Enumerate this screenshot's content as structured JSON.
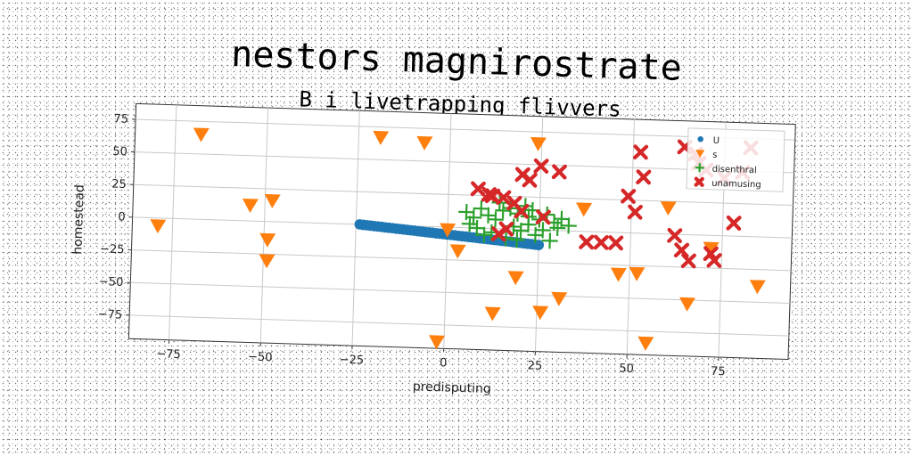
{
  "chart_data": {
    "type": "scatter",
    "title": "nestors magnirostrate",
    "subtitle": "B i livetrapping flivvers",
    "xlabel": "predisputing",
    "ylabel": "homestead",
    "xlim": [
      -86,
      94
    ],
    "ylim": [
      -93,
      87
    ],
    "xticks": [
      -75,
      -50,
      -25,
      0,
      25,
      50,
      75
    ],
    "yticks": [
      75,
      50,
      25,
      0,
      -25,
      -50,
      -75
    ],
    "grid": true,
    "legend_position": "top-right",
    "series": [
      {
        "name": "U",
        "marker": "circle",
        "color": "#1f77b4",
        "points": [
          [
            -24,
            0
          ],
          [
            -23,
            -0.3
          ],
          [
            -22,
            -0.5
          ],
          [
            -21,
            -0.7
          ],
          [
            -20,
            -1
          ],
          [
            -19,
            -1.2
          ],
          [
            -18,
            -1.4
          ],
          [
            -17,
            -1.7
          ],
          [
            -16,
            -1.9
          ],
          [
            -15,
            -2.1
          ],
          [
            -14,
            -2.4
          ],
          [
            -13,
            -2.6
          ],
          [
            -12,
            -2.8
          ],
          [
            -11,
            -3.1
          ],
          [
            -10,
            -3.3
          ],
          [
            -9,
            -3.5
          ],
          [
            -8,
            -3.8
          ],
          [
            -7,
            -4
          ],
          [
            -6,
            -4.3
          ],
          [
            -5,
            -4.5
          ],
          [
            -4,
            -4.7
          ],
          [
            -3,
            -5
          ],
          [
            -2,
            -5.2
          ],
          [
            -1,
            -5.4
          ],
          [
            0,
            -5.7
          ],
          [
            1,
            -5.9
          ],
          [
            2,
            -6.1
          ],
          [
            3,
            -6.4
          ],
          [
            4,
            -6.6
          ],
          [
            5,
            -6.8
          ],
          [
            6,
            -7.1
          ],
          [
            7,
            -7.3
          ],
          [
            8,
            -7.5
          ],
          [
            9,
            -7.8
          ],
          [
            10,
            -8
          ],
          [
            11,
            -8.2
          ],
          [
            12,
            -8.5
          ],
          [
            13,
            -8.7
          ],
          [
            14,
            -8.9
          ],
          [
            15,
            -9.2
          ],
          [
            16,
            -9.4
          ],
          [
            17,
            -9.6
          ],
          [
            18,
            -9.9
          ],
          [
            19,
            -10.1
          ],
          [
            20,
            -10.3
          ],
          [
            21,
            -10.6
          ],
          [
            22,
            -10.8
          ],
          [
            23,
            -11
          ],
          [
            24,
            -11.3
          ],
          [
            25,
            -11.5
          ]
        ]
      },
      {
        "name": "s",
        "marker": "triangle-down",
        "color": "#ff7f0e",
        "points": [
          [
            -68,
            65
          ],
          [
            -19,
            67
          ],
          [
            -7,
            64
          ],
          [
            24,
            66
          ],
          [
            -79,
            -6
          ],
          [
            -54,
            12
          ],
          [
            -48,
            16
          ],
          [
            -49,
            -14
          ],
          [
            -49,
            -30
          ],
          [
            0,
            -2
          ],
          [
            3,
            -18
          ],
          [
            19,
            -37
          ],
          [
            26,
            -63
          ],
          [
            31,
            -52
          ],
          [
            37,
            17
          ],
          [
            13,
            -65
          ],
          [
            -2,
            -88
          ],
          [
            47,
            -32
          ],
          [
            52,
            -31
          ],
          [
            60,
            20
          ],
          [
            66,
            -53
          ],
          [
            72,
            -10
          ],
          [
            85,
            -38
          ],
          [
            55,
            -84
          ]
        ]
      },
      {
        "name": "disenthral",
        "marker": "plus",
        "color": "#2ca02c",
        "points": [
          [
            5,
            12
          ],
          [
            7,
            8
          ],
          [
            9,
            15
          ],
          [
            11,
            10
          ],
          [
            13,
            7
          ],
          [
            15,
            14
          ],
          [
            17,
            16
          ],
          [
            19,
            12
          ],
          [
            21,
            18
          ],
          [
            22,
            10
          ],
          [
            25,
            8
          ],
          [
            27,
            12
          ],
          [
            29,
            6
          ],
          [
            31,
            9
          ],
          [
            33,
            4
          ],
          [
            8,
            0
          ],
          [
            10,
            -5
          ],
          [
            12,
            -3
          ],
          [
            16,
            -7
          ],
          [
            18,
            2
          ],
          [
            20,
            -1
          ],
          [
            22,
            4
          ],
          [
            24,
            -4
          ],
          [
            26,
            0
          ],
          [
            28,
            -8
          ],
          [
            14,
            20
          ],
          [
            6,
            3
          ],
          [
            23,
            15
          ],
          [
            30,
            2
          ],
          [
            19,
            -8
          ]
        ]
      },
      {
        "name": "unamusing",
        "marker": "x",
        "color": "#d62728",
        "points": [
          [
            12,
            25
          ],
          [
            20,
            42
          ],
          [
            25,
            49
          ],
          [
            30,
            45
          ],
          [
            22,
            38
          ],
          [
            8,
            30
          ],
          [
            11,
            26
          ],
          [
            15,
            24
          ],
          [
            18,
            20
          ],
          [
            20,
            14
          ],
          [
            26,
            10
          ],
          [
            16,
            0
          ],
          [
            14,
            -4
          ],
          [
            38,
            -8
          ],
          [
            42,
            -8
          ],
          [
            46,
            -8
          ],
          [
            49,
            28
          ],
          [
            51,
            16
          ],
          [
            52,
            62
          ],
          [
            53,
            43
          ],
          [
            62,
            -1
          ],
          [
            64,
            -12
          ],
          [
            66,
            -20
          ],
          [
            67,
            62
          ],
          [
            68,
            55
          ],
          [
            70,
            50
          ],
          [
            72,
            -14
          ],
          [
            73,
            -19
          ],
          [
            75,
            44
          ],
          [
            78,
            10
          ],
          [
            80,
            49
          ],
          [
            82,
            68
          ],
          [
            64,
            67
          ]
        ]
      }
    ]
  }
}
